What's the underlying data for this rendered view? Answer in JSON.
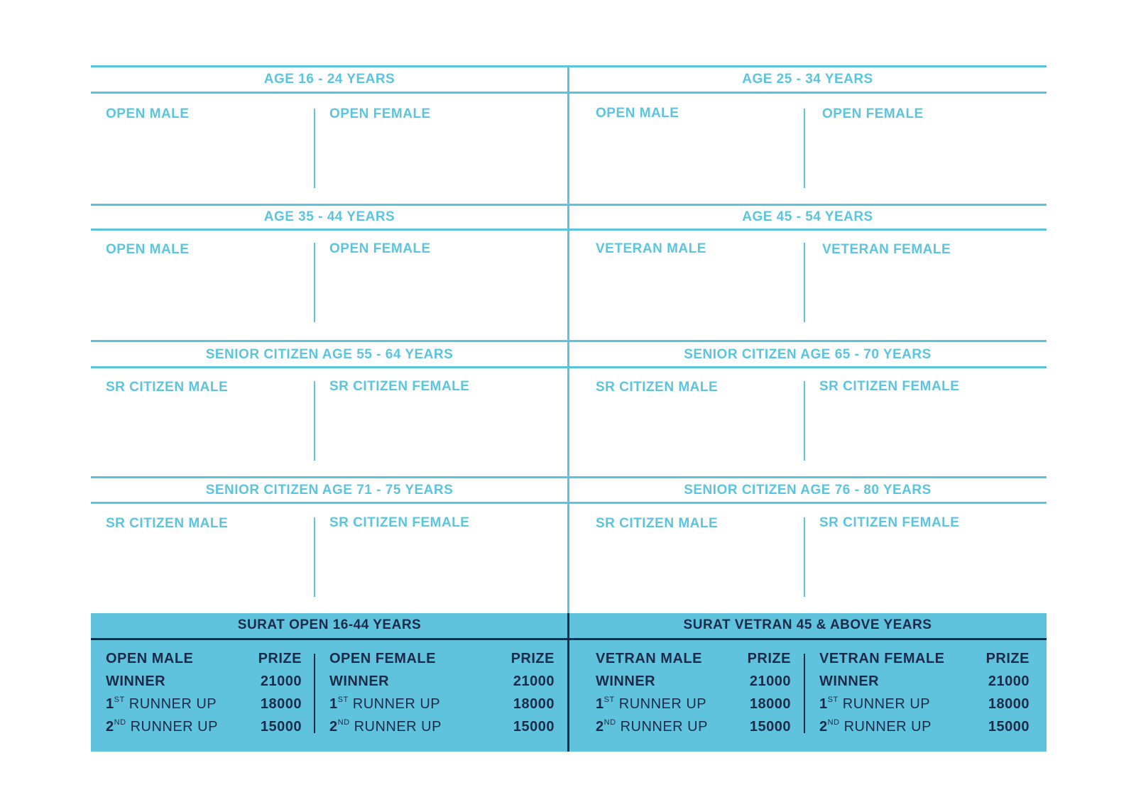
{
  "blocks": [
    {
      "title": "AGE 16 - 24 YEARS",
      "left": "OPEN MALE",
      "right": "OPEN FEMALE"
    },
    {
      "title": "AGE 25 - 34 YEARS",
      "left": "OPEN MALE",
      "right": "OPEN FEMALE"
    },
    {
      "title": "AGE 35 - 44 YEARS",
      "left": "OPEN MALE",
      "right": "OPEN FEMALE"
    },
    {
      "title": "AGE 45 - 54 YEARS",
      "left": "VETERAN MALE",
      "right": "VETERAN FEMALE"
    },
    {
      "title": "SENIOR CITIZEN AGE 55 - 64 YEARS",
      "left": "SR CITIZEN MALE",
      "right": "SR CITIZEN FEMALE"
    },
    {
      "title": "SENIOR CITIZEN AGE 65 - 70  YEARS",
      "left": "SR CITIZEN MALE",
      "right": "SR CITIZEN FEMALE"
    },
    {
      "title": "SENIOR CITIZEN AGE 71 - 75 YEARS",
      "left": "SR CITIZEN MALE",
      "right": "SR CITIZEN FEMALE"
    },
    {
      "title": "SENIOR CITIZEN AGE 76 - 80 YEARS",
      "left": "SR CITIZEN MALE",
      "right": "SR CITIZEN FEMALE"
    }
  ],
  "prizes": {
    "surat_open": {
      "title": "SURAT OPEN 16-44 YEARS",
      "male": {
        "category": "OPEN MALE",
        "prize_header": "PRIZE",
        "winner": "WINNER",
        "winner_amount": "21000",
        "first_num": "1",
        "first_sup": "ST",
        "first_label": " RUNNER UP",
        "first_amount": "18000",
        "second_num": "2",
        "second_sup": "ND",
        "second_label": " RUNNER UP",
        "second_amount": "15000"
      },
      "female": {
        "category": "OPEN FEMALE",
        "prize_header": "PRIZE",
        "winner": "WINNER",
        "winner_amount": "21000",
        "first_num": "1",
        "first_sup": "ST",
        "first_label": " RUNNER UP",
        "first_amount": "18000",
        "second_num": "2",
        "second_sup": "ND",
        "second_label": " RUNNER UP",
        "second_amount": "15000"
      }
    },
    "surat_vetran": {
      "title": "SURAT VETRAN 45 & ABOVE  YEARS",
      "male": {
        "category": "VETRAN MALE",
        "prize_header": "PRIZE",
        "winner": "WINNER",
        "winner_amount": "21000",
        "first_num": "1",
        "first_sup": "ST",
        "first_label": " RUNNER UP",
        "first_amount": "18000",
        "second_num": "2",
        "second_sup": "ND",
        "second_label": " RUNNER UP",
        "second_amount": "15000"
      },
      "female": {
        "category": "VETRAN FEMALE",
        "prize_header": "PRIZE",
        "winner": "WINNER",
        "winner_amount": "21000",
        "first_num": "1",
        "first_sup": "ST",
        "first_label": " RUNNER UP",
        "first_amount": "18000",
        "second_num": "2",
        "second_sup": "ND",
        "second_label": " RUNNER UP",
        "second_amount": "15000"
      }
    }
  },
  "colors": {
    "accent": "#5bc4df",
    "band": "#5fc3dd",
    "dark_text": "#1a2a48"
  }
}
